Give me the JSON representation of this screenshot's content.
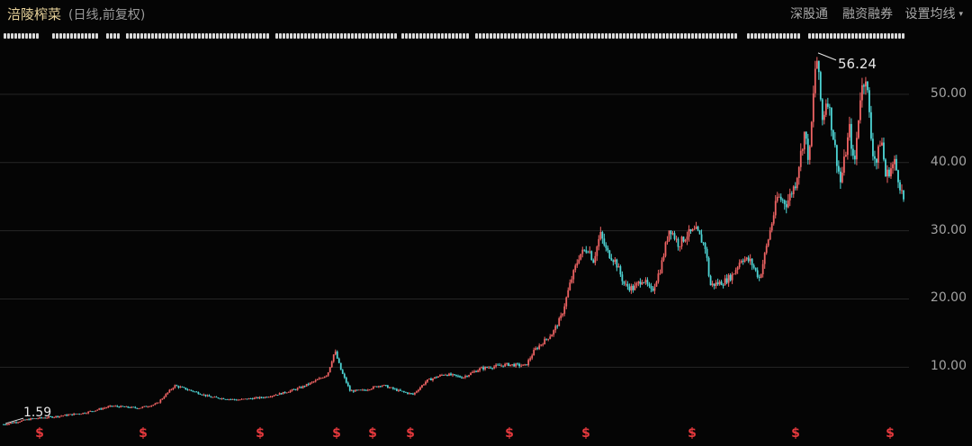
{
  "header": {
    "title": "涪陵榨菜",
    "subtitle": "(日线,前复权)",
    "nav_items": [
      "深股通",
      "融资融券"
    ],
    "settings_label": "设置均线",
    "settings_caret": "▾"
  },
  "colors": {
    "background": "#050505",
    "up": "#f06464",
    "down": "#4ed6d6",
    "grid": "#262626",
    "title": "#e8d29a",
    "dividend_marker": "#e5393d",
    "marker_strip": "#d9d9d9"
  },
  "chart_data": {
    "type": "candlestick",
    "title": "涪陵榨菜",
    "subtitle": "(日线,前复权)",
    "y_ticks": [
      "10.00",
      "20.00",
      "30.00",
      "40.00",
      "50.00"
    ],
    "y_tick_values": [
      10,
      20,
      30,
      40,
      50
    ],
    "ylim": [
      -0.5,
      57.5
    ],
    "grid": "horizontal",
    "max_annotation": "56.24",
    "min_annotation": "1.59",
    "dividend_symbol": "$",
    "dividend_markers": [
      0.04,
      0.155,
      0.285,
      0.37,
      0.41,
      0.452,
      0.562,
      0.647,
      0.765,
      0.88,
      0.985
    ],
    "series": [
      {
        "t": 0.0,
        "v": 1.6
      },
      {
        "t": 0.03,
        "v": 2.4
      },
      {
        "t": 0.06,
        "v": 2.8
      },
      {
        "t": 0.09,
        "v": 3.3
      },
      {
        "t": 0.12,
        "v": 4.3
      },
      {
        "t": 0.15,
        "v": 4.0
      },
      {
        "t": 0.17,
        "v": 4.6
      },
      {
        "t": 0.19,
        "v": 7.3
      },
      {
        "t": 0.21,
        "v": 6.5
      },
      {
        "t": 0.23,
        "v": 5.6
      },
      {
        "t": 0.26,
        "v": 5.2
      },
      {
        "t": 0.29,
        "v": 5.6
      },
      {
        "t": 0.31,
        "v": 6.2
      },
      {
        "t": 0.33,
        "v": 7.0
      },
      {
        "t": 0.35,
        "v": 8.2
      },
      {
        "t": 0.36,
        "v": 9.0
      },
      {
        "t": 0.368,
        "v": 12.4
      },
      {
        "t": 0.375,
        "v": 9.5
      },
      {
        "t": 0.385,
        "v": 6.5
      },
      {
        "t": 0.4,
        "v": 6.6
      },
      {
        "t": 0.42,
        "v": 7.4
      },
      {
        "t": 0.44,
        "v": 6.5
      },
      {
        "t": 0.455,
        "v": 6.0
      },
      {
        "t": 0.47,
        "v": 8.0
      },
      {
        "t": 0.49,
        "v": 9.0
      },
      {
        "t": 0.51,
        "v": 8.5
      },
      {
        "t": 0.53,
        "v": 9.8
      },
      {
        "t": 0.56,
        "v": 10.4
      },
      {
        "t": 0.58,
        "v": 10.2
      },
      {
        "t": 0.59,
        "v": 12.5
      },
      {
        "t": 0.61,
        "v": 15.0
      },
      {
        "t": 0.62,
        "v": 17.5
      },
      {
        "t": 0.63,
        "v": 22.5
      },
      {
        "t": 0.64,
        "v": 26.5
      },
      {
        "t": 0.65,
        "v": 27.5
      },
      {
        "t": 0.655,
        "v": 25.5
      },
      {
        "t": 0.663,
        "v": 29.5
      },
      {
        "t": 0.67,
        "v": 27.0
      },
      {
        "t": 0.68,
        "v": 25.5
      },
      {
        "t": 0.69,
        "v": 22.0
      },
      {
        "t": 0.7,
        "v": 21.5
      },
      {
        "t": 0.71,
        "v": 23.0
      },
      {
        "t": 0.72,
        "v": 21.0
      },
      {
        "t": 0.73,
        "v": 24.5
      },
      {
        "t": 0.74,
        "v": 30.5
      },
      {
        "t": 0.75,
        "v": 28.0
      },
      {
        "t": 0.76,
        "v": 29.5
      },
      {
        "t": 0.77,
        "v": 30.0
      },
      {
        "t": 0.78,
        "v": 27.5
      },
      {
        "t": 0.785,
        "v": 22.0
      },
      {
        "t": 0.8,
        "v": 22.5
      },
      {
        "t": 0.81,
        "v": 23.5
      },
      {
        "t": 0.82,
        "v": 26.0
      },
      {
        "t": 0.83,
        "v": 25.5
      },
      {
        "t": 0.84,
        "v": 23.0
      },
      {
        "t": 0.85,
        "v": 29.0
      },
      {
        "t": 0.86,
        "v": 35.0
      },
      {
        "t": 0.87,
        "v": 34.0
      },
      {
        "t": 0.88,
        "v": 37.0
      },
      {
        "t": 0.89,
        "v": 44.5
      },
      {
        "t": 0.895,
        "v": 40.0
      },
      {
        "t": 0.903,
        "v": 56.2
      },
      {
        "t": 0.91,
        "v": 46.0
      },
      {
        "t": 0.915,
        "v": 50.0
      },
      {
        "t": 0.925,
        "v": 41.0
      },
      {
        "t": 0.93,
        "v": 37.0
      },
      {
        "t": 0.94,
        "v": 45.0
      },
      {
        "t": 0.945,
        "v": 39.0
      },
      {
        "t": 0.952,
        "v": 50.0
      },
      {
        "t": 0.958,
        "v": 53.0
      },
      {
        "t": 0.965,
        "v": 42.0
      },
      {
        "t": 0.97,
        "v": 40.0
      },
      {
        "t": 0.975,
        "v": 44.0
      },
      {
        "t": 0.98,
        "v": 38.0
      },
      {
        "t": 0.99,
        "v": 40.0
      },
      {
        "t": 1.0,
        "v": 34.5
      }
    ]
  }
}
